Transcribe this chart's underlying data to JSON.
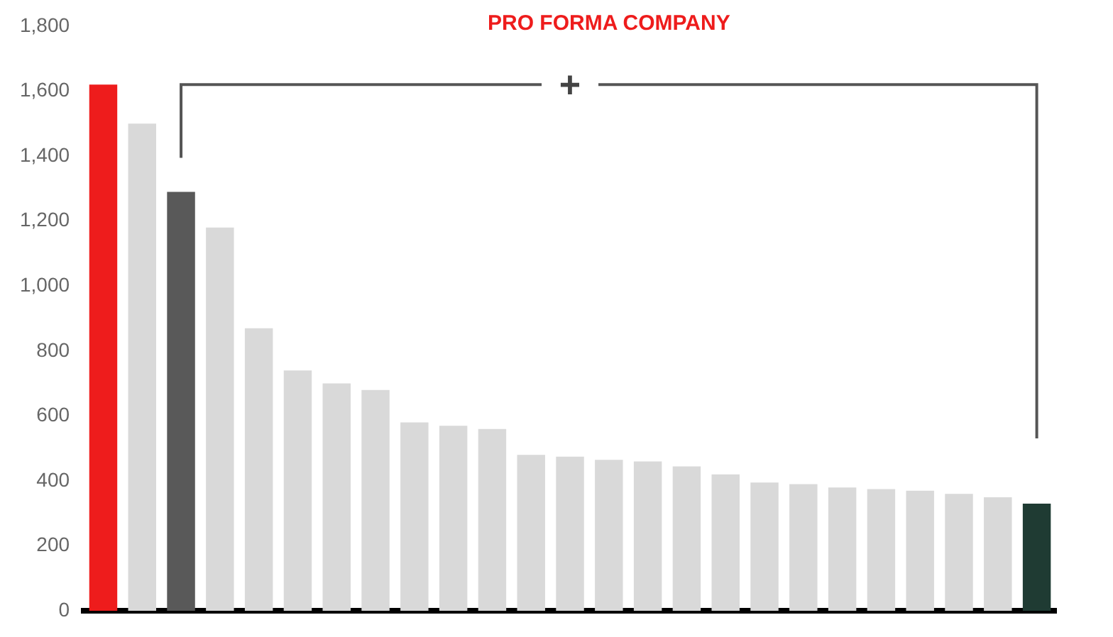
{
  "chart_data": {
    "type": "bar",
    "title": "PRO FORMA COMPANY",
    "categories": [
      null,
      null,
      null,
      null,
      null,
      null,
      null,
      null,
      null,
      null,
      null,
      null,
      null,
      null,
      null,
      null,
      null,
      null,
      null,
      null,
      null,
      null,
      null,
      null,
      null
    ],
    "values": [
      1620,
      1500,
      1290,
      1180,
      870,
      740,
      700,
      680,
      580,
      570,
      560,
      480,
      475,
      465,
      460,
      445,
      420,
      395,
      390,
      380,
      375,
      370,
      360,
      350,
      330
    ],
    "colors": [
      "#ee1c1c",
      "#d9d9d9",
      "#595959",
      "#d9d9d9",
      "#d9d9d9",
      "#d9d9d9",
      "#d9d9d9",
      "#d9d9d9",
      "#d9d9d9",
      "#d9d9d9",
      "#d9d9d9",
      "#d9d9d9",
      "#d9d9d9",
      "#d9d9d9",
      "#d9d9d9",
      "#d9d9d9",
      "#d9d9d9",
      "#d9d9d9",
      "#d9d9d9",
      "#d9d9d9",
      "#d9d9d9",
      "#d9d9d9",
      "#d9d9d9",
      "#d9d9d9",
      "#1f3b33"
    ],
    "ylim": [
      0,
      1800
    ],
    "yticks": [
      0,
      200,
      400,
      600,
      800,
      {
        "value": 1000,
        "label": "1,000"
      },
      {
        "value": 1200,
        "label": "1,200"
      },
      {
        "value": 1400,
        "label": "1,400"
      },
      {
        "value": 1600,
        "label": "1,600"
      },
      {
        "value": 1800,
        "label": "1,800"
      }
    ],
    "grid": false,
    "legend": false,
    "tick_labels": "y",
    "annotations": [
      "+"
    ]
  }
}
